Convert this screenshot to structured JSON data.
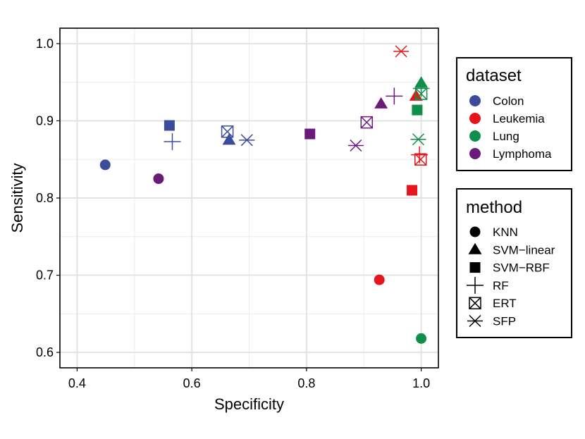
{
  "chart_data": {
    "type": "scatter",
    "xlabel": "Specificity",
    "ylabel": "Sensitivity",
    "xlim": [
      0.37,
      1.03
    ],
    "ylim": [
      0.58,
      1.02
    ],
    "xticks": [
      0.4,
      0.6,
      0.8,
      1.0
    ],
    "xtick_labels": [
      "0.4",
      "0.6",
      "0.8",
      "1.0"
    ],
    "yticks": [
      0.6,
      0.7,
      0.8,
      0.9,
      1.0
    ],
    "ytick_labels": [
      "0.6",
      "0.7",
      "0.8",
      "0.9",
      "1.0"
    ],
    "grid": true,
    "legend_dataset": {
      "title": "dataset",
      "items": [
        {
          "label": "Colon",
          "color": "#3B4C9B"
        },
        {
          "label": "Leukemia",
          "color": "#E8141B"
        },
        {
          "label": "Lung",
          "color": "#0F8F4A"
        },
        {
          "label": "Lymphoma",
          "color": "#6A1B7A"
        }
      ]
    },
    "legend_method": {
      "title": "method",
      "items": [
        {
          "label": "KNN",
          "shape": "circle"
        },
        {
          "label": "SVM−linear",
          "shape": "triangle"
        },
        {
          "label": "SVM−RBF",
          "shape": "square"
        },
        {
          "label": "RF",
          "shape": "plus"
        },
        {
          "label": "ERT",
          "shape": "boxx"
        },
        {
          "label": "SFP",
          "shape": "asterisk"
        }
      ]
    },
    "points": [
      {
        "dataset": "Colon",
        "method": "KNN",
        "x": 0.449,
        "y": 0.843
      },
      {
        "dataset": "Colon",
        "method": "SVM−linear",
        "x": 0.665,
        "y": 0.875
      },
      {
        "dataset": "Colon",
        "method": "SVM−RBF",
        "x": 0.561,
        "y": 0.894
      },
      {
        "dataset": "Colon",
        "method": "RF",
        "x": 0.566,
        "y": 0.873
      },
      {
        "dataset": "Colon",
        "method": "ERT",
        "x": 0.662,
        "y": 0.886
      },
      {
        "dataset": "Colon",
        "method": "SFP",
        "x": 0.696,
        "y": 0.875
      },
      {
        "dataset": "Leukemia",
        "method": "KNN",
        "x": 0.927,
        "y": 0.694
      },
      {
        "dataset": "Leukemia",
        "method": "SVM−linear",
        "x": 0.991,
        "y": 0.932
      },
      {
        "dataset": "Leukemia",
        "method": "SVM−RBF",
        "x": 0.984,
        "y": 0.81
      },
      {
        "dataset": "Leukemia",
        "method": "RF",
        "x": 0.997,
        "y": 0.856
      },
      {
        "dataset": "Leukemia",
        "method": "ERT",
        "x": 0.999,
        "y": 0.85
      },
      {
        "dataset": "Leukemia",
        "method": "SFP",
        "x": 0.965,
        "y": 0.99
      },
      {
        "dataset": "Lung",
        "method": "KNN",
        "x": 1.0,
        "y": 0.618
      },
      {
        "dataset": "Lung",
        "method": "SVM−linear",
        "x": 1.0,
        "y": 0.949
      },
      {
        "dataset": "Lung",
        "method": "SVM−RBF",
        "x": 0.993,
        "y": 0.914
      },
      {
        "dataset": "Lung",
        "method": "RF",
        "x": 1.0,
        "y": 0.942
      },
      {
        "dataset": "Lung",
        "method": "ERT",
        "x": 1.0,
        "y": 0.935
      },
      {
        "dataset": "Lung",
        "method": "SFP",
        "x": 0.995,
        "y": 0.876
      },
      {
        "dataset": "Lymphoma",
        "method": "KNN",
        "x": 0.542,
        "y": 0.825
      },
      {
        "dataset": "Lymphoma",
        "method": "SVM−linear",
        "x": 0.93,
        "y": 0.922
      },
      {
        "dataset": "Lymphoma",
        "method": "SVM−RBF",
        "x": 0.806,
        "y": 0.883
      },
      {
        "dataset": "Lymphoma",
        "method": "RF",
        "x": 0.953,
        "y": 0.932
      },
      {
        "dataset": "Lymphoma",
        "method": "ERT",
        "x": 0.905,
        "y": 0.898
      },
      {
        "dataset": "Lymphoma",
        "method": "SFP",
        "x": 0.886,
        "y": 0.868
      }
    ]
  }
}
